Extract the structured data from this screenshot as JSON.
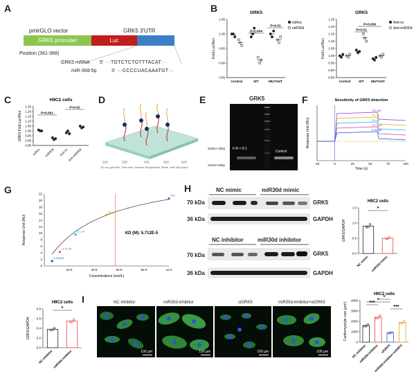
{
  "panel_labels": {
    "a": "A",
    "b": "B",
    "c": "C",
    "d": "D",
    "e": "E",
    "f": "F",
    "g": "G",
    "h": "H",
    "i": "I"
  },
  "panel_a": {
    "vector": "pmirGLO vector",
    "promoter": "GRK5 promoter",
    "luc": "Luc",
    "utr": "GRK5 3'UTR",
    "position": "Position (361-368)",
    "mrna_label": "GRK5 mRNA",
    "mrna_seq": "5' ···TGTCTCTGTTTACAT···",
    "mir_label": "miR-30d-5p",
    "mir_seq": "3' ···CCCCUACAAATGT···"
  },
  "panel_b": {
    "chart_data": [
      {
        "type": "scatter",
        "title": "GRK5",
        "ylabel": "Fold Luc/Ren",
        "ylim": [
          0.85,
          1.05
        ],
        "yticks": [
          "0.85",
          "0.90",
          "0.95",
          "1.00",
          "1.05"
        ],
        "categories": [
          "Control",
          "WT",
          "MUTANT"
        ],
        "series": [
          {
            "name": "miRnc",
            "values": [
              [
                1.0,
                1.0,
                0.99
              ],
              [
                0.99,
                1.0,
                1.02
              ],
              [
                1.0,
                0.99,
                1.01
              ]
            ]
          },
          {
            "name": "miR30d",
            "values": [
              [
                0.98,
                0.97,
                0.96
              ],
              [
                0.92,
                0.9,
                0.91
              ],
              [
                0.98,
                0.97,
                0.99
              ]
            ]
          }
        ],
        "annotations": [
          "P=0.004",
          "P=0.01"
        ]
      },
      {
        "type": "scatter",
        "title": "GRK5",
        "ylabel": "Fold Luc/Ren",
        "ylim": [
          0.85,
          1.25
        ],
        "yticks": [
          "0.85",
          "0.90",
          "0.95",
          "1.00",
          "1.05",
          "1.10",
          "1.15",
          "1.20",
          "1.25"
        ],
        "categories": [
          "Control",
          "WT",
          "MUTANT"
        ],
        "series": [
          {
            "name": "Anti-nc",
            "values": [
              [
                1.0,
                0.99,
                1.01
              ],
              [
                1.04,
                1.02,
                1.03
              ],
              [
                0.98,
                0.97,
                0.99
              ]
            ]
          },
          {
            "name": "Anti-miR30d",
            "values": [
              [
                1.0,
                0.99,
                1.01
              ],
              [
                1.15,
                1.12,
                1.1
              ],
              [
                1.0,
                0.99,
                1.01
              ]
            ]
          }
        ],
        "annotations": [
          "P=0.01",
          "P=0.006"
        ]
      }
    ]
  },
  "panel_c": {
    "chart_data": {
      "type": "scatter",
      "title": "H9C2 cells",
      "ylabel": "GRK5 Fold Luc/Ren",
      "ylim": [
        0.85,
        1.25
      ],
      "yticks": [
        "0.85",
        "0.90",
        "0.95",
        "1.00",
        "1.05",
        "1.10",
        "1.15",
        "1.20",
        "1.25"
      ],
      "categories": [
        "miRnc",
        "miR30d",
        "Anti-nc",
        "Anti-miR30d"
      ],
      "values": [
        [
          1.01,
          1.0,
          1.0
        ],
        [
          0.93,
          0.91,
          0.92
        ],
        [
          0.98,
          1.0,
          0.97
        ],
        [
          1.05,
          1.03,
          1.04
        ]
      ],
      "annotations": [
        "P=0.001",
        "P=0.02"
      ]
    }
  },
  "panel_d": {
    "legend": [
      "60 nm gold film",
      "Flow sink",
      "Dextran-Streptavidin",
      "Biotin",
      "miR-30d probe"
    ]
  },
  "panel_e": {
    "title": "GRK5",
    "ratio": "F:R = 5:1",
    "control": "Control",
    "ds": "dsDNA 80bp",
    "ss": "ssDNA 80bp"
  },
  "panel_f": {
    "chart_data": {
      "type": "line",
      "title": "Sensitivity of GRK5 detection",
      "xlabel": "Time (s)",
      "ylabel": "Response Unit (RU)",
      "xticks": [
        "-25",
        "0",
        "25",
        "50",
        "75",
        "100"
      ],
      "series": [
        {
          "name": "100 µM",
          "color": "#9b2fd0"
        },
        {
          "name": "50 µM",
          "color": "#e8a400"
        },
        {
          "name": "25 µM",
          "color": "#17b0e8"
        },
        {
          "name": "12.5 µM",
          "color": "#d33bb8"
        },
        {
          "name": "6.25 µM",
          "color": "#1a46e0"
        }
      ]
    }
  },
  "panel_g": {
    "chart_data": {
      "type": "line",
      "xlabel": "Concentrations (mol/L)",
      "ylabel": "Response Unit (RU)",
      "ylim": [
        0,
        22
      ],
      "yticks": [
        "0",
        "2",
        "4",
        "6",
        "8",
        "10",
        "12",
        "14",
        "16",
        "18",
        "20",
        "22"
      ],
      "xticks": [
        "2e-5",
        "4e-5",
        "6e-5",
        "8e-5",
        "1e-4"
      ],
      "points": [
        {
          "label": "6.25 µM",
          "x": 6.25e-06,
          "y": 1.5,
          "color": "#1a46e0"
        },
        {
          "label": "12.5 µM",
          "x": 1.25e-05,
          "y": 4.3,
          "color": "#d33bb8"
        },
        {
          "label": "25 µM",
          "x": 2.5e-05,
          "y": 9.6,
          "color": "#17b0e8"
        },
        {
          "label": "50 µM",
          "x": 5e-05,
          "y": 15.6,
          "color": "#e8a400"
        },
        {
          "label": "100 µM",
          "x": 0.0001,
          "y": 20.6,
          "color": "#9b2fd0"
        }
      ],
      "annotation": "KD (M): 5.712E-5"
    }
  },
  "panel_h": {
    "top_groups": [
      "NC mimic",
      "miR30d mimic"
    ],
    "bot_groups": [
      "NC inhibitor",
      "miR30d inhibitor"
    ],
    "kda70": "70 kDa",
    "kda36": "36 kDa",
    "grk5": "GRK5",
    "gapdh": "GAPDH",
    "bar_title": "H9C2 cells",
    "bar_ylabel": "GRK5/GAPDH",
    "chart_data": {
      "type": "bar",
      "title": "H9C2 cells",
      "ylabel": "GRK5/GAPDH",
      "categories": [
        "NC mimic",
        "miR30d mimic"
      ],
      "values": [
        0.9,
        0.5
      ],
      "ylim": [
        0,
        1.5
      ],
      "yticks": [
        "0.0",
        "0.5",
        "1.0",
        "1.5"
      ],
      "annotation": "*"
    }
  },
  "panel_g2": {
    "chart_data": {
      "type": "bar",
      "title": "H9C2 cells",
      "ylabel": "GRK5/GAPDH",
      "categories": [
        "NC inhibitor",
        "miR30d inhibitor"
      ],
      "values": [
        0.38,
        0.55
      ],
      "ylim": [
        0,
        0.8
      ],
      "yticks": [
        "0.0",
        "0.2",
        "0.4",
        "0.6",
        "0.8"
      ],
      "annotation": "*"
    }
  },
  "panel_i": {
    "labels": [
      "NC inhibitor",
      "miR30d-inhibitor",
      "siGRK5",
      "miR30d-inhibitor+siGRK5"
    ],
    "scale": "100 µm",
    "chart_data": {
      "type": "bar",
      "title": "H9C2 cells",
      "ylabel": "Cardiomyocyte size (µm²)",
      "categories": [
        "NC inhibitor",
        "miR30d-inhibitor",
        "siGRK5",
        "miR30d-inhibitor+siGRK5"
      ],
      "values": [
        1600,
        2400,
        900,
        1900
      ],
      "ylim": [
        0,
        4000
      ],
      "yticks": [
        "0",
        "1000",
        "2000",
        "3000",
        "4000"
      ],
      "annotations": [
        "***",
        "*",
        "*",
        "***"
      ]
    }
  }
}
